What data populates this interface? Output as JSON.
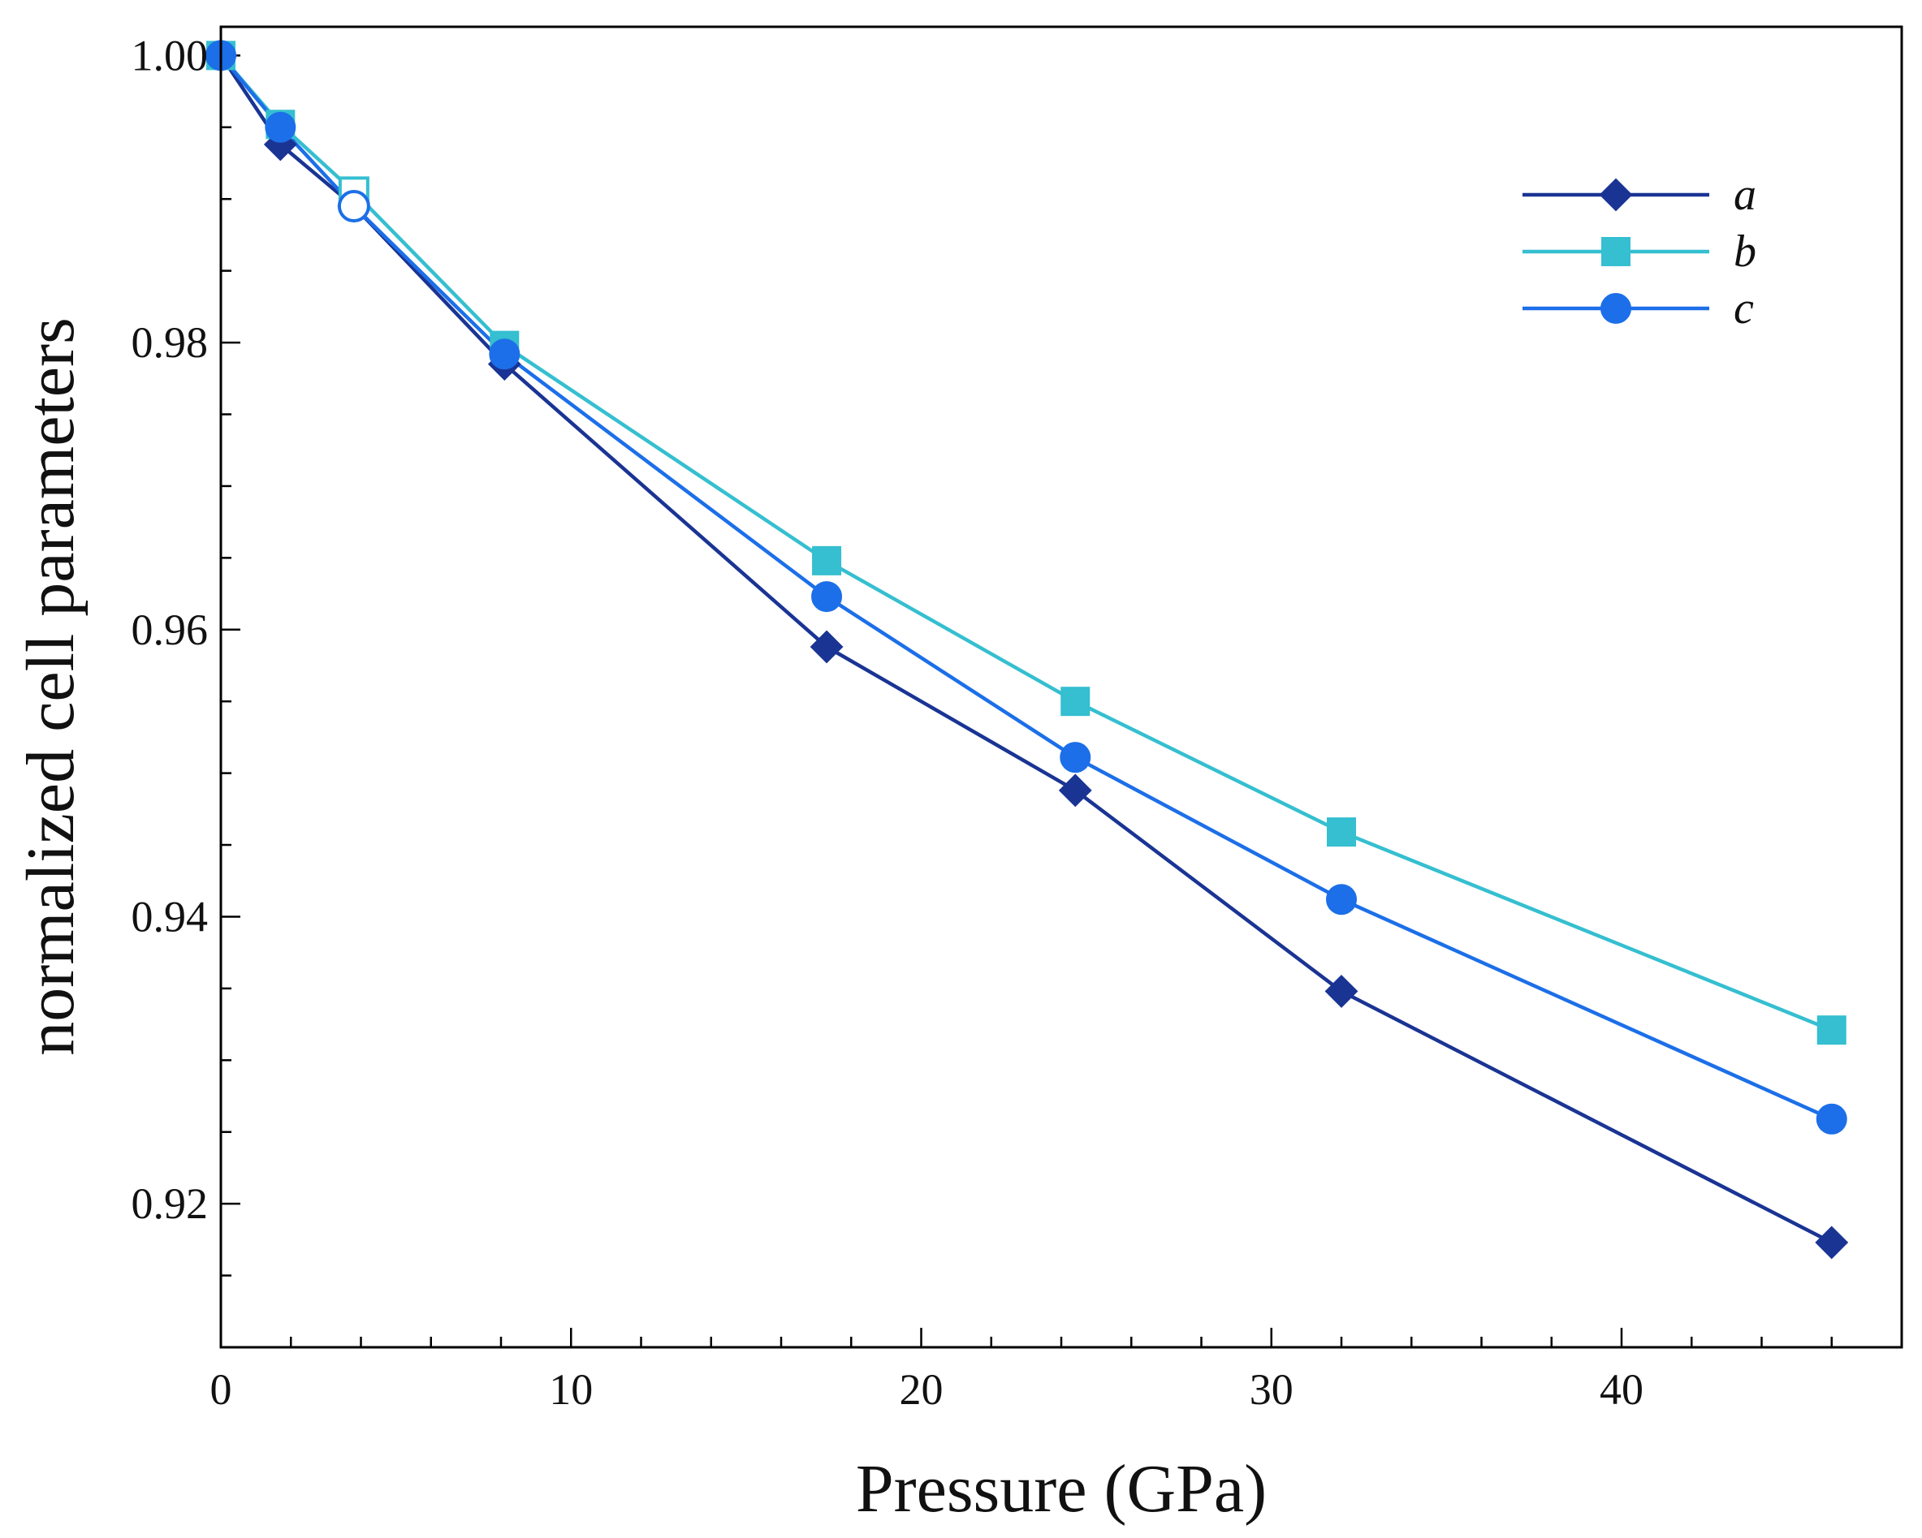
{
  "chart_data": {
    "type": "line",
    "title": "",
    "xlabel": "Pressure (GPa)",
    "ylabel": "normalized cell parameters",
    "xlim": [
      0,
      48
    ],
    "ylim": [
      0.91,
      1.002
    ],
    "x_ticks": [
      0,
      10,
      20,
      30,
      40
    ],
    "x_tick_labels": [
      "0",
      "10",
      "20",
      "30",
      "40"
    ],
    "x_minor_step": 2,
    "y_ticks": [
      0.92,
      0.94,
      0.96,
      0.98,
      1.0
    ],
    "y_tick_labels": [
      "0.92",
      "0.94",
      "0.96",
      "0.98",
      "1.00"
    ],
    "y_minor_step": 0.005,
    "legend_position": "top-right",
    "series": [
      {
        "name": "a",
        "color": "#1a3494",
        "marker": "diamond",
        "x": [
          0,
          1.7,
          3.8,
          8.1,
          17.3,
          24.4,
          32.0,
          46.0
        ],
        "values": [
          1.0,
          0.9938,
          0.9895,
          0.9785,
          0.9588,
          0.9488,
          0.9348,
          0.9173
        ],
        "open_points": []
      },
      {
        "name": "b",
        "color": "#35bfd0",
        "marker": "square",
        "x": [
          0,
          1.7,
          3.8,
          8.1,
          17.3,
          24.4,
          32.0,
          46.0
        ],
        "values": [
          1.0,
          0.9952,
          0.9905,
          0.9798,
          0.9648,
          0.955,
          0.9459,
          0.9321
        ],
        "open_points": [
          2
        ]
      },
      {
        "name": "c",
        "color": "#1c6fe8",
        "marker": "circle",
        "x": [
          0,
          1.7,
          3.8,
          8.1,
          17.3,
          24.4,
          32.0,
          46.0
        ],
        "values": [
          1.0,
          0.995,
          0.9895,
          0.9792,
          0.9623,
          0.9511,
          0.9412,
          0.9259
        ],
        "open_points": [
          2
        ]
      }
    ]
  }
}
